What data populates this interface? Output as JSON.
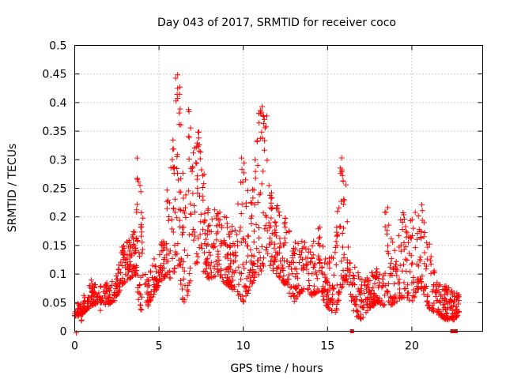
{
  "chart_data": {
    "type": "scatter",
    "title": "Day 043 of 2017, SRMTID for receiver coco",
    "xlabel": "GPS time / hours",
    "ylabel": "SRMTID / TECUs",
    "xlim": [
      0,
      24.2
    ],
    "ylim": [
      0,
      0.5
    ],
    "x_ticks": [
      0,
      5,
      10,
      15,
      20
    ],
    "x_tick_labels": [
      "0",
      "5",
      "10",
      "15",
      "20"
    ],
    "y_ticks": [
      0,
      0.05,
      0.1,
      0.15,
      0.2,
      0.25,
      0.3,
      0.35,
      0.4,
      0.45,
      0.5
    ],
    "y_tick_labels": [
      "0",
      "0.05",
      "0.1",
      "0.15",
      "0.2",
      "0.25",
      "0.3",
      "0.35",
      "0.4",
      "0.45",
      "0.5"
    ],
    "grid": true,
    "marker": "+",
    "marker_color": "#ff0000",
    "series": [
      {
        "name": "SRMTID",
        "envelope": {
          "x": [
            0,
            0.5,
            1.0,
            1.5,
            2.0,
            2.5,
            2.8,
            3.2,
            3.6,
            3.8,
            4.0,
            4.3,
            4.8,
            5.2,
            5.5,
            5.8,
            6.0,
            6.2,
            6.5,
            6.8,
            7.0,
            7.3,
            7.6,
            8.0,
            8.5,
            9.0,
            9.5,
            10.0,
            10.5,
            11.0,
            11.3,
            11.6,
            12.0,
            12.5,
            13.0,
            13.5,
            14.0,
            14.5,
            15.0,
            15.5,
            15.8,
            16.0,
            16.3,
            16.5,
            17.0,
            17.5,
            18.0,
            18.5,
            19.0,
            19.5,
            20.0,
            20.5,
            21.0,
            21.5,
            22.0,
            22.5,
            22.8
          ],
          "upper": [
            0.045,
            0.06,
            0.09,
            0.08,
            0.085,
            0.1,
            0.15,
            0.16,
            0.18,
            0.31,
            0.22,
            0.1,
            0.13,
            0.16,
            0.25,
            0.32,
            0.45,
            0.43,
            0.23,
            0.39,
            0.32,
            0.37,
            0.3,
            0.2,
            0.22,
            0.2,
            0.18,
            0.31,
            0.24,
            0.4,
            0.38,
            0.25,
            0.22,
            0.2,
            0.16,
            0.17,
            0.15,
            0.2,
            0.13,
            0.17,
            0.32,
            0.27,
            0.15,
            0.13,
            0.09,
            0.1,
            0.12,
            0.22,
            0.15,
            0.22,
            0.2,
            0.23,
            0.16,
            0.09,
            0.08,
            0.07,
            0.065
          ],
          "lower": [
            0.025,
            0.03,
            0.045,
            0.05,
            0.045,
            0.06,
            0.08,
            0.09,
            0.1,
            0.05,
            0.03,
            0.04,
            0.07,
            0.09,
            0.1,
            0.08,
            0.12,
            0.1,
            0.03,
            0.08,
            0.1,
            0.12,
            0.1,
            0.09,
            0.1,
            0.08,
            0.07,
            0.05,
            0.08,
            0.1,
            0.12,
            0.11,
            0.1,
            0.08,
            0.05,
            0.07,
            0.06,
            0.07,
            0.04,
            0.03,
            0.06,
            0.09,
            0.08,
            0.03,
            0.02,
            0.04,
            0.05,
            0.04,
            0.05,
            0.06,
            0.05,
            0.08,
            0.04,
            0.03,
            0.02,
            0.02,
            0.03
          ]
        },
        "zero_points": [
          16.45,
          22.4,
          22.6
        ]
      }
    ]
  }
}
